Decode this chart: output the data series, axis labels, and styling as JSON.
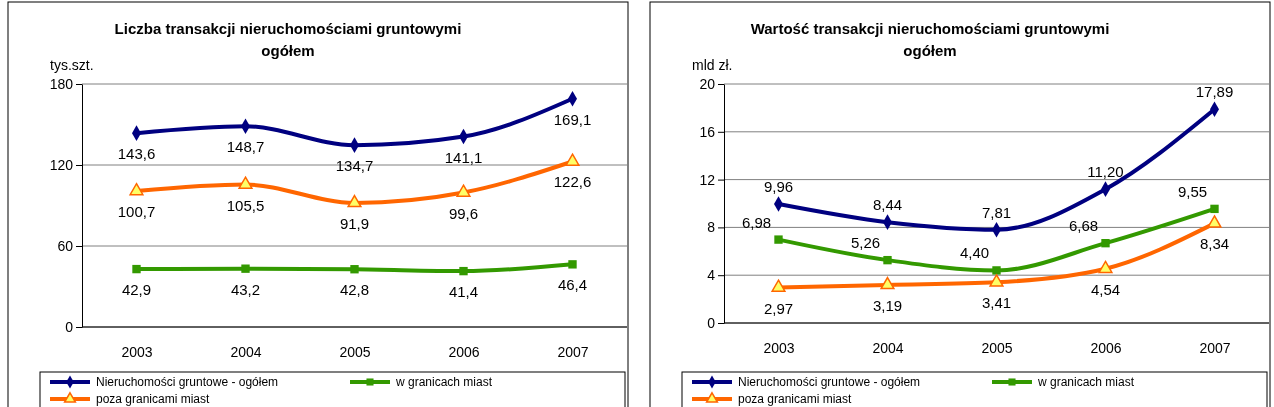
{
  "chart_data": [
    {
      "type": "line",
      "title": "Liczba transakcji nieruchomościami gruntowymi ogółem",
      "ylabel": "tys.szt.",
      "categories": [
        "2003",
        "2004",
        "2005",
        "2006",
        "2007"
      ],
      "ylim": [
        0,
        180
      ],
      "yticks": [
        0,
        60,
        120,
        180
      ],
      "grid": "y",
      "legend": "bottom",
      "line_style": "solid",
      "series": [
        {
          "name": "Nieruchomości gruntowe - ogółem",
          "color": "#000080",
          "marker": "diamond",
          "values": [
            143.6,
            148.7,
            134.7,
            141.1,
            169.1
          ],
          "value_labels": [
            "143,6",
            "148,7",
            "134,7",
            "141,1",
            "169,1"
          ]
        },
        {
          "name": "w granicach miast",
          "color": "#339900",
          "marker": "square",
          "values": [
            42.9,
            43.2,
            42.8,
            41.4,
            46.4
          ],
          "value_labels": [
            "42,9",
            "43,2",
            "42,8",
            "41,4",
            "46,4"
          ]
        },
        {
          "name": "poza granicami miast",
          "color": "#ff6600",
          "marker": "triangle",
          "values": [
            100.7,
            105.5,
            91.9,
            99.6,
            122.6
          ],
          "value_labels": [
            "100,7",
            "105,5",
            "91,9",
            "99,6",
            "122,6"
          ]
        }
      ]
    },
    {
      "type": "line",
      "title": "Wartość transakcji nieruchomościami gruntowymi ogółem",
      "ylabel": "mld zł.",
      "categories": [
        "2003",
        "2004",
        "2005",
        "2006",
        "2007"
      ],
      "ylim": [
        0,
        20
      ],
      "yticks": [
        0,
        4,
        8,
        12,
        16,
        20
      ],
      "grid": "y",
      "legend": "bottom",
      "line_style": "solid",
      "series": [
        {
          "name": "Nieruchomości gruntowe - ogółem",
          "color": "#000080",
          "marker": "diamond",
          "values": [
            9.96,
            8.44,
            7.81,
            11.2,
            17.89
          ],
          "value_labels": [
            "9,96",
            "8,44",
            "7,81",
            "11,20",
            "17,89"
          ]
        },
        {
          "name": "w granicach miast",
          "color": "#339900",
          "marker": "square",
          "values": [
            6.98,
            5.26,
            4.4,
            6.68,
            9.55
          ],
          "value_labels": [
            "6,98",
            "5,26",
            "4,40",
            "6,68",
            "9,55"
          ]
        },
        {
          "name": "poza granicami miast",
          "color": "#ff6600",
          "marker": "triangle",
          "values": [
            2.97,
            3.19,
            3.41,
            4.54,
            8.34
          ],
          "value_labels": [
            "2,97",
            "3,19",
            "3,41",
            "4,54",
            "8,34"
          ]
        }
      ]
    }
  ]
}
